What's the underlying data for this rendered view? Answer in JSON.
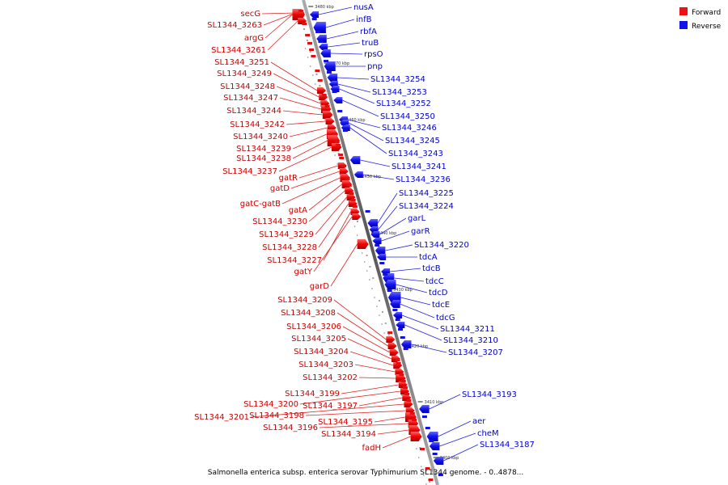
{
  "legend": {
    "forward": {
      "label": "Forward",
      "color": "#ee1111"
    },
    "reverse": {
      "label": "Reverse",
      "color": "#1111ee"
    }
  },
  "caption": "Salmonella enterica subsp. enterica serovar Typhimurium SL1344 genome. - 0..4878...",
  "scale_ticks": [
    "3480 kbp",
    "3470 kbp",
    "3460 kbp",
    "3450 kbp",
    "3440 kbp",
    "3430 kbp",
    "3420 kbp",
    "3410 kbp",
    "3400 kbp"
  ],
  "forward_genes": [
    "secG",
    "SL1344_3263",
    "argG",
    "SL1344_3261",
    "SL1344_3251",
    "SL1344_3249",
    "SL1344_3248",
    "SL1344_3247",
    "SL1344_3244",
    "SL1344_3242",
    "SL1344_3240",
    "SL1344_3239",
    "SL1344_3238",
    "SL1344_3237",
    "gatR",
    "gatD",
    "gatC-gatB",
    "gatA",
    "SL1344_3230",
    "SL1344_3229",
    "SL1344_3228",
    "SL1344_3227",
    "gatY",
    "garD",
    "SL1344_3209",
    "SL1344_3208",
    "SL1344_3206",
    "SL1344_3205",
    "SL1344_3204",
    "SL1344_3203",
    "SL1344_3202",
    "SL1344_3199",
    "SL1344_3200",
    "SL1344_3197",
    "SL1344_3201",
    "SL1344_3198",
    "SL1344_3195",
    "SL1344_3196",
    "SL1344_3194",
    "fadH"
  ],
  "reverse_genes": [
    "nusA",
    "infB",
    "rbfA",
    "truB",
    "rpsO",
    "pnp",
    "SL1344_3254",
    "SL1344_3253",
    "SL1344_3252",
    "SL1344_3250",
    "SL1344_3246",
    "SL1344_3245",
    "SL1344_3243",
    "SL1344_3241",
    "SL1344_3236",
    "SL1344_3225",
    "SL1344_3224",
    "garL",
    "garR",
    "SL1344_3220",
    "tdcA",
    "tdcB",
    "tdcC",
    "tdcD",
    "tdcE",
    "tdcG",
    "SL1344_3211",
    "SL1344_3210",
    "SL1344_3207",
    "SL1344_3193",
    "aer",
    "cheM",
    "SL1344_3187"
  ]
}
